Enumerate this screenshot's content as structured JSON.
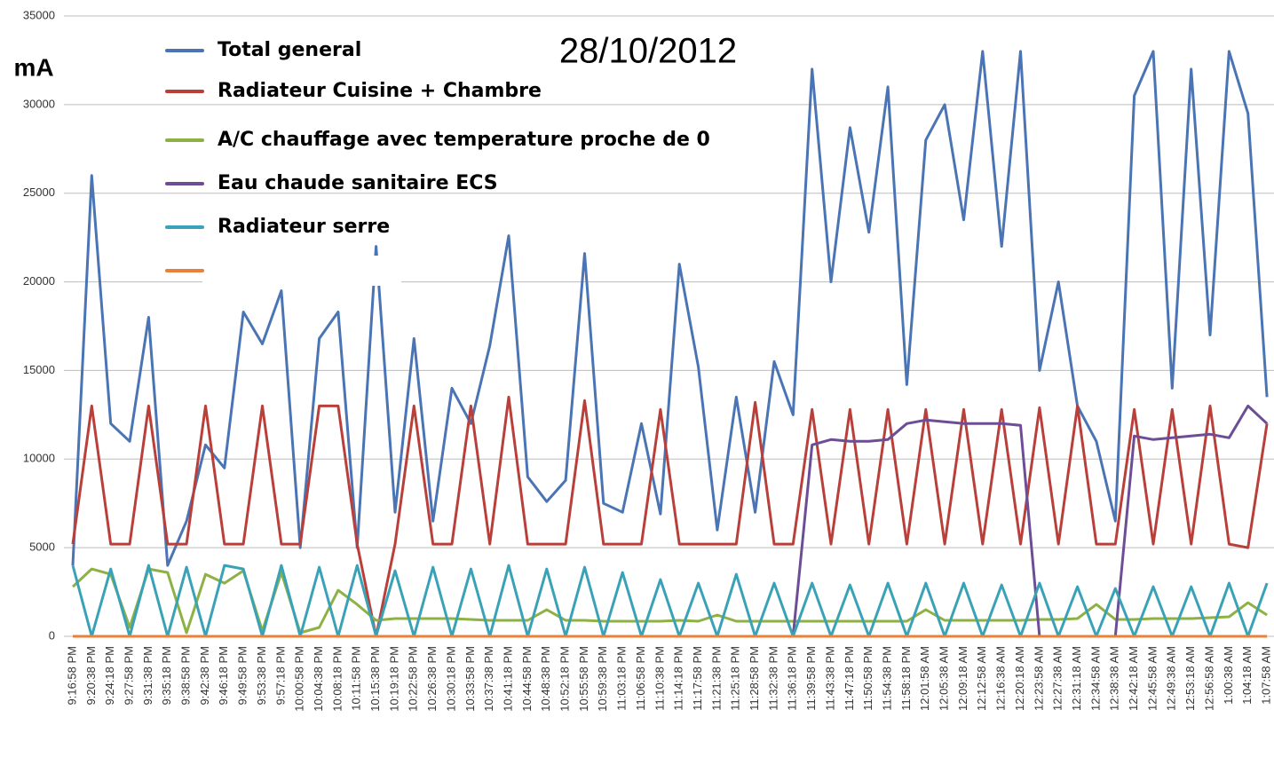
{
  "chart_data": {
    "type": "line",
    "title": "28/10/2012",
    "y_label": "mA",
    "categories": [
      "9:16:58 PM",
      "9:20:38 PM",
      "9:24:18 PM",
      "9:27:58 PM",
      "9:31:38 PM",
      "9:35:18 PM",
      "9:38:58 PM",
      "9:42:38 PM",
      "9:46:18 PM",
      "9:49:58 PM",
      "9:53:38 PM",
      "9:57:18 PM",
      "10:00:58 PM",
      "10:04:38 PM",
      "10:08:18 PM",
      "10:11:58 PM",
      "10:15:38 PM",
      "10:19:18 PM",
      "10:22:58 PM",
      "10:26:38 PM",
      "10:30:18 PM",
      "10:33:58 PM",
      "10:37:38 PM",
      "10:41:18 PM",
      "10:44:58 PM",
      "10:48:38 PM",
      "10:52:18 PM",
      "10:55:58 PM",
      "10:59:38 PM",
      "11:03:18 PM",
      "11:06:58 PM",
      "11:10:38 PM",
      "11:14:18 PM",
      "11:17:58 PM",
      "11:21:38 PM",
      "11:25:18 PM",
      "11:28:58 PM",
      "11:32:38 PM",
      "11:36:18 PM",
      "11:39:58 PM",
      "11:43:38 PM",
      "11:47:18 PM",
      "11:50:58 PM",
      "11:54:38 PM",
      "11:58:18 PM",
      "12:01:58 AM",
      "12:05:38 AM",
      "12:09:18 AM",
      "12:12:58 AM",
      "12:16:38 AM",
      "12:20:18 AM",
      "12:23:58 AM",
      "12:27:38 AM",
      "12:31:18 AM",
      "12:34:58 AM",
      "12:38:38 AM",
      "12:42:18 AM",
      "12:45:58 AM",
      "12:49:38 AM",
      "12:53:18 AM",
      "12:56:58 AM",
      "1:00:38 AM",
      "1:04:18 AM",
      "1:07:58 AM"
    ],
    "series": [
      {
        "name": "Total general",
        "color": "#4a74b4",
        "values": [
          4000,
          26000,
          12000,
          11000,
          18000,
          4000,
          6500,
          10800,
          9500,
          18300,
          16500,
          19500,
          5000,
          16800,
          18300,
          5000,
          22000,
          7000,
          16800,
          6500,
          14000,
          12000,
          16400,
          22600,
          9000,
          7600,
          8800,
          21600,
          7500,
          7000,
          12000,
          6900,
          21000,
          15200,
          6000,
          13500,
          7000,
          15500,
          12500,
          32000,
          20000,
          28700,
          22800,
          31000,
          14200,
          28000,
          30000,
          23500,
          33000,
          22000,
          33000,
          15000,
          20000,
          13000,
          11000,
          6500,
          30500,
          33000,
          14000,
          32000,
          17000,
          33000,
          29500,
          13500
        ]
      },
      {
        "name": "Radiateur Cuisine + Chambre",
        "color": "#b9403a",
        "values": [
          5200,
          13000,
          5200,
          5200,
          13000,
          5200,
          5200,
          13000,
          5200,
          5200,
          13000,
          5200,
          5200,
          13000,
          13000,
          5200,
          0,
          5200,
          13000,
          5200,
          5200,
          13000,
          5200,
          13500,
          5200,
          5200,
          5200,
          13300,
          5200,
          5200,
          5200,
          12800,
          5200,
          5200,
          5200,
          5200,
          13200,
          5200,
          5200,
          12800,
          5200,
          12800,
          5200,
          12800,
          5200,
          12800,
          5200,
          12800,
          5200,
          12800,
          5200,
          12900,
          5200,
          13000,
          5200,
          5200,
          12800,
          5200,
          12800,
          5200,
          13000,
          5200,
          5000,
          12000
        ]
      },
      {
        "name": "A/C chauffage avec temperature proche de 0",
        "color": "#8db144",
        "values": [
          2800,
          3800,
          3500,
          500,
          3800,
          3600,
          200,
          3500,
          3000,
          3700,
          300,
          3600,
          200,
          500,
          2600,
          1800,
          900,
          1000,
          1000,
          1000,
          1000,
          950,
          900,
          900,
          900,
          1500,
          900,
          900,
          850,
          850,
          850,
          850,
          900,
          850,
          1200,
          850,
          850,
          850,
          850,
          850,
          850,
          850,
          850,
          850,
          850,
          1500,
          900,
          900,
          900,
          900,
          900,
          950,
          950,
          1000,
          1800,
          950,
          950,
          1000,
          1000,
          1000,
          1050,
          1100,
          1900,
          1200
        ]
      },
      {
        "name": "Eau chaude sanitaire ECS",
        "color": "#6d4e96",
        "values": [
          0,
          0,
          0,
          0,
          0,
          0,
          0,
          0,
          0,
          0,
          0,
          0,
          0,
          0,
          0,
          0,
          0,
          0,
          0,
          0,
          0,
          0,
          0,
          0,
          0,
          0,
          0,
          0,
          0,
          0,
          0,
          0,
          0,
          0,
          0,
          0,
          0,
          0,
          0,
          10800,
          11100,
          11000,
          11000,
          11100,
          12000,
          12200,
          12100,
          12000,
          12000,
          12000,
          11900,
          0,
          0,
          0,
          0,
          0,
          11300,
          11100,
          11200,
          11300,
          11400,
          11200,
          13000,
          12000
        ]
      },
      {
        "name": "Radiateur serre",
        "color": "#3aa2b6",
        "values": [
          4000,
          0,
          3800,
          0,
          4000,
          0,
          3900,
          0,
          4000,
          3800,
          0,
          4000,
          0,
          3900,
          0,
          4000,
          0,
          3700,
          0,
          3900,
          0,
          3800,
          0,
          4000,
          0,
          3800,
          0,
          3900,
          0,
          3600,
          0,
          3200,
          0,
          3000,
          0,
          3500,
          0,
          3000,
          0,
          3000,
          0,
          2900,
          0,
          3000,
          0,
          3000,
          0,
          3000,
          0,
          2900,
          0,
          3000,
          0,
          2800,
          0,
          2700,
          0,
          2800,
          0,
          2800,
          0,
          3000,
          0,
          3000
        ]
      },
      {
        "color": "#e8813a",
        "values": [
          0,
          0,
          0,
          0,
          0,
          0,
          0,
          0,
          0,
          0,
          0,
          0,
          0,
          0,
          0,
          0,
          0,
          0,
          0,
          0,
          0,
          0,
          0,
          0,
          0,
          0,
          0,
          0,
          0,
          0,
          0,
          0,
          0,
          0,
          0,
          0,
          0,
          0,
          0,
          0,
          0,
          0,
          0,
          0,
          0,
          0,
          0,
          0,
          0,
          0,
          0,
          0,
          0,
          0,
          0,
          0,
          0,
          0,
          0,
          0,
          0,
          0,
          0,
          0
        ]
      }
    ],
    "ylim": [
      0,
      35000
    ],
    "yticks": [
      0,
      5000,
      10000,
      15000,
      20000,
      25000,
      30000,
      35000
    ],
    "grid": true
  }
}
